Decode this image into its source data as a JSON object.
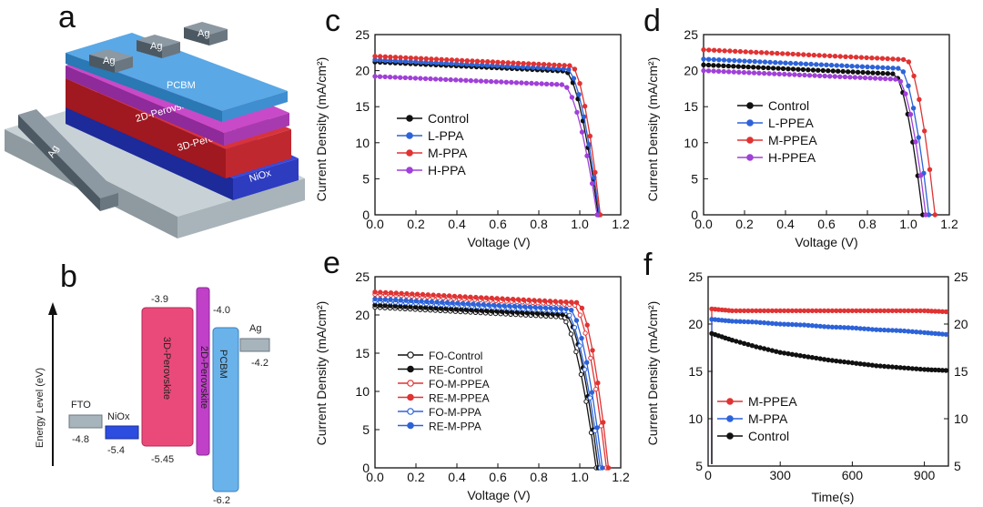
{
  "panels": {
    "a": "a",
    "b": "b",
    "c": "c",
    "d": "d",
    "e": "e",
    "f": "f"
  },
  "device": {
    "electrode": "Ag",
    "layers": [
      "PCBM",
      "2D-Perovskite",
      "3D-Perovskite",
      "NiOx"
    ]
  },
  "energy": {
    "ylabel": "Energy Level (eV)",
    "levels": [
      {
        "name": "FTO",
        "values": [
          "-4.8"
        ]
      },
      {
        "name": "NiOx",
        "values": [
          "-5.4"
        ]
      },
      {
        "name": "3D-Perovskite",
        "values": [
          "-3.9",
          "-5.45"
        ]
      },
      {
        "name": "2D-Perovskite",
        "values": [
          "-4.0"
        ]
      },
      {
        "name": "PCBM",
        "values": [
          "-6.2"
        ]
      },
      {
        "name": "Ag",
        "values": [
          "-4.2"
        ]
      }
    ]
  },
  "colors": {
    "black": "#111111",
    "blue": "#2d63d8",
    "red": "#e03333",
    "purple": "#a040d8",
    "pink": "#ea4a7a",
    "magenta": "#c040c8",
    "lightblue": "#6ab2ea",
    "gray": "#a8b4bc"
  },
  "chart_data": [
    {
      "id": "c",
      "type": "line",
      "xlabel": "Voltage (V)",
      "ylabel": "Current Density (mA/cm²)",
      "xlim": [
        0,
        1.2
      ],
      "ylim": [
        0,
        25
      ],
      "xticks": [
        "0.0",
        "0.2",
        "0.4",
        "0.6",
        "0.8",
        "1.0",
        "1.2"
      ],
      "yticks": [
        "0",
        "5",
        "10",
        "15",
        "20",
        "25"
      ],
      "legend_position": "middle-left",
      "series": [
        {
          "name": "Control",
          "color": "#111111",
          "marker": "filled",
          "jsc": 21.2,
          "voc": 1.09,
          "knee": 0.93
        },
        {
          "name": "L-PPA",
          "color": "#2d63d8",
          "marker": "filled",
          "jsc": 21.5,
          "voc": 1.095,
          "knee": 0.94
        },
        {
          "name": "M-PPA",
          "color": "#e03333",
          "marker": "filled",
          "jsc": 22.0,
          "voc": 1.1,
          "knee": 0.96
        },
        {
          "name": "H-PPA",
          "color": "#a040d8",
          "marker": "filled",
          "jsc": 19.2,
          "voc": 1.085,
          "knee": 0.92
        }
      ]
    },
    {
      "id": "d",
      "type": "line",
      "xlabel": "Voltage (V)",
      "ylabel": "Current Density (mA/cm²)",
      "xlim": [
        0,
        1.2
      ],
      "ylim": [
        0,
        25
      ],
      "xticks": [
        "0.0",
        "0.2",
        "0.4",
        "0.6",
        "0.8",
        "1.0",
        "1.2"
      ],
      "yticks": [
        "0",
        "5",
        "10",
        "15",
        "20",
        "25"
      ],
      "legend_position": "middle-left",
      "series": [
        {
          "name": "Control",
          "color": "#111111",
          "marker": "filled",
          "jsc": 20.8,
          "voc": 1.07,
          "knee": 0.93
        },
        {
          "name": "L-PPEA",
          "color": "#2d63d8",
          "marker": "filled",
          "jsc": 21.6,
          "voc": 1.1,
          "knee": 0.96
        },
        {
          "name": "M-PPEA",
          "color": "#e03333",
          "marker": "filled",
          "jsc": 22.9,
          "voc": 1.13,
          "knee": 0.99
        },
        {
          "name": "H-PPEA",
          "color": "#a040d8",
          "marker": "filled",
          "jsc": 20.0,
          "voc": 1.085,
          "knee": 0.95
        }
      ]
    },
    {
      "id": "e",
      "type": "line",
      "xlabel": "Voltage (V)",
      "ylabel": "Current Density (mA/cm²)",
      "xlim": [
        0,
        1.2
      ],
      "ylim": [
        0,
        25
      ],
      "xticks": [
        "0.0",
        "0.2",
        "0.4",
        "0.6",
        "0.8",
        "1.0",
        "1.2"
      ],
      "yticks": [
        "0",
        "5",
        "10",
        "15",
        "20",
        "25"
      ],
      "legend_position": "lower-left",
      "series": [
        {
          "name": "FO-Control",
          "color": "#111111",
          "marker": "open",
          "jsc": 21.0,
          "voc": 1.08,
          "knee": 0.91
        },
        {
          "name": "RE-Control",
          "color": "#111111",
          "marker": "filled",
          "jsc": 21.3,
          "voc": 1.09,
          "knee": 0.93
        },
        {
          "name": "FO-M-PPEA",
          "color": "#e03333",
          "marker": "open",
          "jsc": 22.7,
          "voc": 1.13,
          "knee": 0.97
        },
        {
          "name": "RE-M-PPEA",
          "color": "#e03333",
          "marker": "filled",
          "jsc": 23.0,
          "voc": 1.14,
          "knee": 0.99
        },
        {
          "name": "FO-M-PPA",
          "color": "#2d63d8",
          "marker": "open",
          "jsc": 21.8,
          "voc": 1.1,
          "knee": 0.93
        },
        {
          "name": "RE-M-PPA",
          "color": "#2d63d8",
          "marker": "filled",
          "jsc": 22.1,
          "voc": 1.11,
          "knee": 0.95
        }
      ]
    },
    {
      "id": "f",
      "type": "line",
      "xlabel": "Time(s)",
      "ylabel": "Current Density (mA/cm²)",
      "xlim": [
        0,
        1000
      ],
      "ylim": [
        5,
        25
      ],
      "xticks": [
        "0",
        "300",
        "600",
        "900"
      ],
      "yticks": [
        "5",
        "10",
        "15",
        "20",
        "25"
      ],
      "legend_position": "lower-left",
      "series": [
        {
          "name": "M-PPEA",
          "color": "#e03333",
          "marker": "filled",
          "x": [
            15,
            100,
            200,
            300,
            400,
            500,
            600,
            700,
            800,
            900,
            990
          ],
          "y": [
            21.6,
            21.4,
            21.4,
            21.4,
            21.4,
            21.4,
            21.4,
            21.4,
            21.4,
            21.4,
            21.3
          ]
        },
        {
          "name": "M-PPA",
          "color": "#2d63d8",
          "marker": "filled",
          "x": [
            15,
            100,
            200,
            300,
            400,
            500,
            600,
            700,
            800,
            900,
            990
          ],
          "y": [
            20.5,
            20.3,
            20.2,
            20.0,
            19.9,
            19.7,
            19.6,
            19.4,
            19.3,
            19.1,
            18.9
          ]
        },
        {
          "name": "Control",
          "color": "#111111",
          "marker": "filled",
          "x": [
            15,
            100,
            200,
            300,
            400,
            500,
            600,
            700,
            800,
            900,
            990
          ],
          "y": [
            19.0,
            18.3,
            17.6,
            17.0,
            16.6,
            16.2,
            15.9,
            15.6,
            15.4,
            15.2,
            15.1
          ]
        }
      ]
    }
  ]
}
